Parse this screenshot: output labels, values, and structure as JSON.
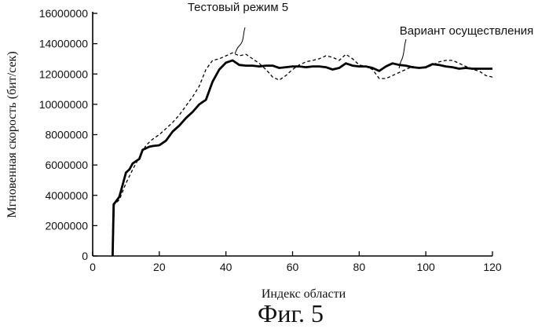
{
  "chart_data": {
    "type": "line",
    "title": "",
    "xlabel": "Индекс области",
    "ylabel": "Мгновенная скорость (бит/сек)",
    "xlim": [
      0,
      120
    ],
    "ylim": [
      0,
      16000000
    ],
    "xticks": [
      0,
      20,
      40,
      60,
      80,
      100,
      120
    ],
    "yticks": [
      0,
      2000000,
      4000000,
      6000000,
      8000000,
      10000000,
      12000000,
      14000000,
      16000000
    ],
    "xtick_labels": [
      "0",
      "20",
      "40",
      "60",
      "80",
      "100",
      "120"
    ],
    "ytick_labels": [
      "0",
      "2000000",
      "4000000",
      "6000000",
      "8000000",
      "10000000",
      "12000000",
      "14000000",
      "16000000"
    ],
    "grid": false,
    "legend": "direct labels",
    "series": [
      {
        "name": "Вариант осуществления",
        "style": "solid-thick",
        "color": "#000000",
        "x": [
          6,
          6.3,
          7,
          8,
          9,
          10,
          11,
          12,
          14,
          15,
          16,
          17,
          18,
          20,
          22,
          24,
          26,
          28,
          30,
          32,
          34,
          36,
          38,
          40,
          42,
          44,
          46,
          48,
          50,
          52,
          54,
          56,
          58,
          60,
          62,
          64,
          66,
          68,
          70,
          72,
          74,
          76,
          78,
          80,
          82,
          84,
          86,
          88,
          90,
          92,
          94,
          96,
          98,
          100,
          102,
          104,
          106,
          108,
          110,
          112,
          114,
          116,
          118,
          120
        ],
        "y": [
          0,
          3400000,
          3600000,
          3900000,
          4700000,
          5500000,
          5700000,
          6100000,
          6400000,
          7000000,
          7100000,
          7200000,
          7250000,
          7300000,
          7600000,
          8200000,
          8600000,
          9100000,
          9500000,
          10000000,
          10300000,
          11500000,
          12300000,
          12750000,
          12900000,
          12600000,
          12550000,
          12550000,
          12500000,
          12550000,
          12550000,
          12400000,
          12450000,
          12500000,
          12500000,
          12450000,
          12500000,
          12500000,
          12450000,
          12300000,
          12400000,
          12700000,
          12550000,
          12500000,
          12500000,
          12400000,
          12200000,
          12500000,
          12700000,
          12600000,
          12550000,
          12450000,
          12400000,
          12450000,
          12650000,
          12600000,
          12500000,
          12450000,
          12350000,
          12400000,
          12350000,
          12350000,
          12350000,
          12350000
        ]
      },
      {
        "name": "Тестовый режим 5",
        "style": "dashed",
        "color": "#000000",
        "x": [
          6,
          6.5,
          8,
          10,
          12,
          14,
          16,
          18,
          20,
          22,
          24,
          26,
          28,
          30,
          32,
          34,
          36,
          38,
          40,
          42,
          44,
          46,
          48,
          50,
          52,
          54,
          56,
          58,
          60,
          62,
          64,
          66,
          68,
          70,
          72,
          74,
          76,
          78,
          80,
          82,
          84,
          86,
          88,
          90,
          92,
          94,
          96,
          98,
          100,
          102,
          104,
          106,
          108,
          110,
          112,
          114,
          116,
          118,
          120
        ],
        "y": [
          0,
          3400000,
          3700000,
          4800000,
          5700000,
          6500000,
          7300000,
          7700000,
          8000000,
          8400000,
          8800000,
          9300000,
          9900000,
          10500000,
          11200000,
          12300000,
          12900000,
          13000000,
          13200000,
          13400000,
          13200000,
          13300000,
          13000000,
          12700000,
          12300000,
          11800000,
          11600000,
          11900000,
          12300000,
          12600000,
          12800000,
          12900000,
          13000000,
          13200000,
          13100000,
          12900000,
          13300000,
          13000000,
          12600000,
          12500000,
          12300000,
          11700000,
          11700000,
          11900000,
          12100000,
          12300000,
          12500000,
          12400000,
          12400000,
          12600000,
          12800000,
          12900000,
          12900000,
          12700000,
          12500000,
          12300000,
          12200000,
          11900000,
          11800000
        ]
      }
    ]
  },
  "caption": "Фиг. 5"
}
